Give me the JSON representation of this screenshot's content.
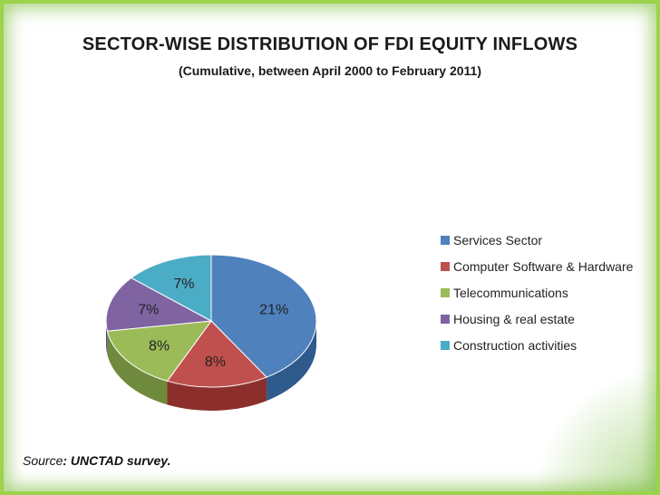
{
  "chart_data": {
    "type": "pie",
    "title": "SECTOR-WISE DISTRIBUTION OF FDI EQUITY INFLOWS",
    "subtitle": "(Cumulative, between April 2000 to February 2011)",
    "categories": [
      "Services Sector",
      "Computer Software & Hardware",
      "Telecommunications",
      "Housing & real estate",
      "Construction activities"
    ],
    "values": [
      21,
      8,
      8,
      7,
      7
    ],
    "data_labels": [
      "21%",
      "8%",
      "8%",
      "7%",
      "7%"
    ],
    "colors": [
      "#4f81bd",
      "#c0504d",
      "#9bbb59",
      "#8064a2",
      "#4bacc6"
    ],
    "dark_colors": [
      "#2f5a8c",
      "#8c2f2c",
      "#6f8a3c",
      "#5b4678",
      "#2f7f95"
    ],
    "style": "3d-tilted",
    "legend_position": "right"
  },
  "source": {
    "prefix": "Source",
    "text": ": UNCTAD survey."
  }
}
